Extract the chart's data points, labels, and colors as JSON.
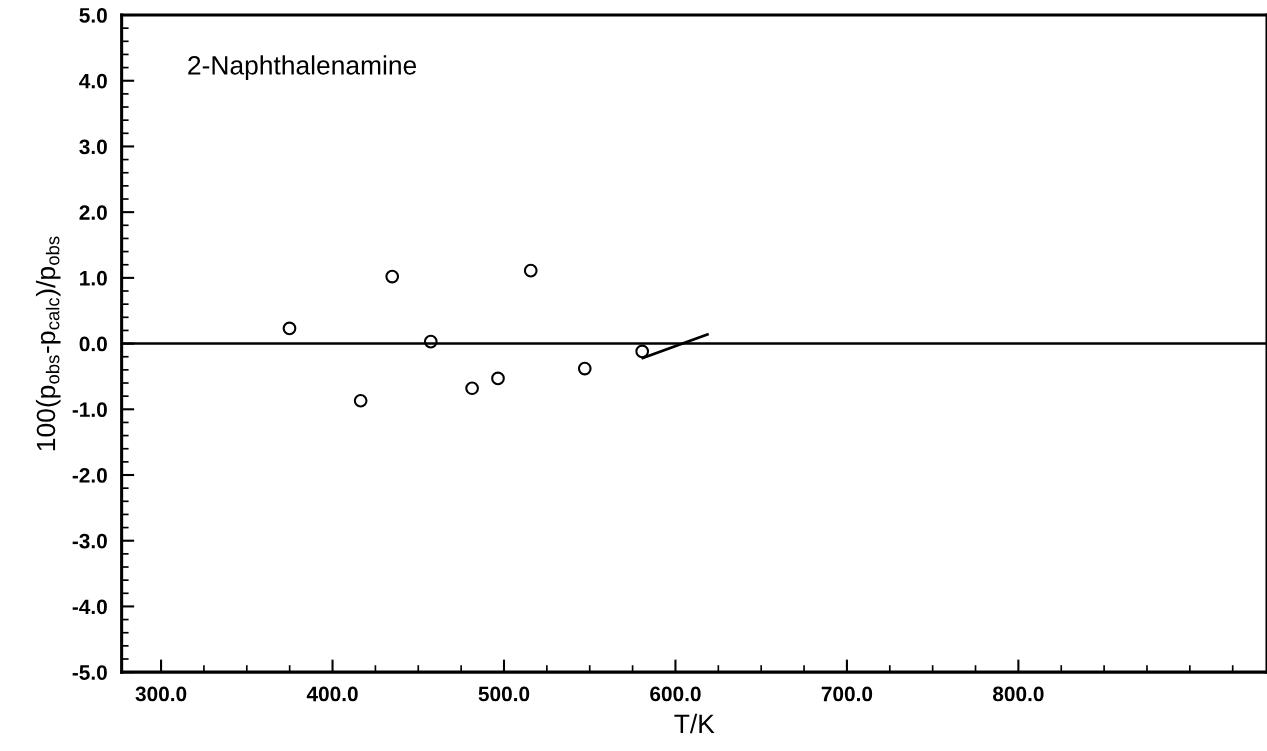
{
  "chart_data": {
    "type": "scatter",
    "xlabel": "T/K",
    "ylabel": "100(p$_{obs}$-p$_{calc}$)/p$_{obs}$",
    "annotations": [
      "2-Naphthalenamine"
    ],
    "series": [
      {
        "color": "#000000",
        "marker": "circle",
        "x": [
          374.9,
          416.4,
          434.8,
          457.3,
          481.4,
          496.5,
          515.6,
          547.1,
          580.6
        ],
        "values": [
          0.23,
          -0.87,
          1.02,
          0.03,
          -0.68,
          -0.53,
          1.11,
          -0.38,
          -0.12
        ]
      },
      {
        "type": "line",
        "color": "#000000",
        "x": [
          580.9,
          618.7
        ],
        "values": [
          -0.22,
          0.14
        ]
      }
    ],
    "ref_lines": [
      {
        "axis": "y",
        "value": 0,
        "color": "#000000"
      }
    ],
    "xlim": [
      277,
      945
    ],
    "ylim": [
      -5.0,
      5.0
    ],
    "xticks": [
      {
        "value": 300,
        "label": "300.0"
      },
      {
        "value": 325,
        "label": null
      },
      {
        "value": 350,
        "label": null
      },
      {
        "value": 375,
        "label": null
      },
      {
        "value": 400,
        "label": "400.0"
      },
      {
        "value": 425,
        "label": null
      },
      {
        "value": 450,
        "label": null
      },
      {
        "value": 475,
        "label": null
      },
      {
        "value": 500,
        "label": "500.0"
      },
      {
        "value": 525,
        "label": null
      },
      {
        "value": 550,
        "label": null
      },
      {
        "value": 575,
        "label": null
      },
      {
        "value": 600,
        "label": "600.0"
      },
      {
        "value": 625,
        "label": null
      },
      {
        "value": 650,
        "label": null
      },
      {
        "value": 675,
        "label": null
      },
      {
        "value": 700,
        "label": "700.0"
      },
      {
        "value": 725,
        "label": null
      },
      {
        "value": 750,
        "label": null
      },
      {
        "value": 775,
        "label": null
      },
      {
        "value": 800,
        "label": "800.0"
      },
      {
        "value": 825,
        "label": null
      },
      {
        "value": 850,
        "label": null
      },
      {
        "value": 875,
        "label": null
      },
      {
        "value": 900,
        "label": null
      },
      {
        "value": 925,
        "label": null
      }
    ],
    "yticks": [
      {
        "value": -5.0,
        "label": "-5.0"
      },
      {
        "value": -4.0,
        "label": "-4.0"
      },
      {
        "value": -3.0,
        "label": "-3.0"
      },
      {
        "value": -2.0,
        "label": "-2.0"
      },
      {
        "value": -1.0,
        "label": "-1.0"
      },
      {
        "value": 0.0,
        "label": "0.0"
      },
      {
        "value": 1.0,
        "label": "1.0"
      },
      {
        "value": 2.0,
        "label": "2.0"
      },
      {
        "value": 3.0,
        "label": "3.0"
      },
      {
        "value": 4.0,
        "label": "4.0"
      },
      {
        "value": 5.0,
        "label": "5.0"
      },
      {
        "value": -4.8,
        "label": null
      },
      {
        "value": -4.6,
        "label": null
      },
      {
        "value": -4.4,
        "label": null
      },
      {
        "value": -4.2,
        "label": null
      },
      {
        "value": -3.8,
        "label": null
      },
      {
        "value": -3.6,
        "label": null
      },
      {
        "value": -3.4,
        "label": null
      },
      {
        "value": -3.2,
        "label": null
      },
      {
        "value": -2.8,
        "label": null
      },
      {
        "value": -2.6,
        "label": null
      },
      {
        "value": -2.4,
        "label": null
      },
      {
        "value": -2.2,
        "label": null
      },
      {
        "value": -1.8,
        "label": null
      },
      {
        "value": -1.6,
        "label": null
      },
      {
        "value": -1.4,
        "label": null
      },
      {
        "value": -1.2,
        "label": null
      },
      {
        "value": -0.8,
        "label": null
      },
      {
        "value": -0.6,
        "label": null
      },
      {
        "value": -0.4,
        "label": null
      },
      {
        "value": -0.2,
        "label": null
      },
      {
        "value": 0.2,
        "label": null
      },
      {
        "value": 0.4,
        "label": null
      },
      {
        "value": 0.6,
        "label": null
      },
      {
        "value": 0.8,
        "label": null
      },
      {
        "value": 1.2,
        "label": null
      },
      {
        "value": 1.4,
        "label": null
      },
      {
        "value": 1.6,
        "label": null
      },
      {
        "value": 1.8,
        "label": null
      },
      {
        "value": 2.2,
        "label": null
      },
      {
        "value": 2.4,
        "label": null
      },
      {
        "value": 2.6,
        "label": null
      },
      {
        "value": 2.8,
        "label": null
      },
      {
        "value": 3.2,
        "label": null
      },
      {
        "value": 3.4,
        "label": null
      },
      {
        "value": 3.6,
        "label": null
      },
      {
        "value": 3.8,
        "label": null
      },
      {
        "value": 4.2,
        "label": null
      },
      {
        "value": 4.4,
        "label": null
      },
      {
        "value": 4.6,
        "label": null
      },
      {
        "value": 4.8,
        "label": null
      }
    ],
    "grid": false,
    "legend": false
  }
}
